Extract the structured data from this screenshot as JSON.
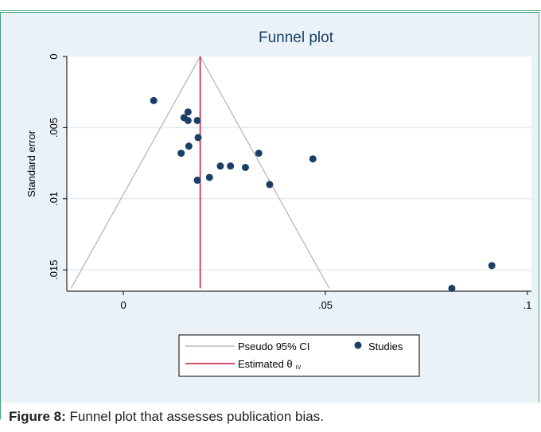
{
  "caption": {
    "label": "Figure 8:",
    "text": "Funnel plot that assesses publication bias."
  },
  "colors": {
    "frame_border": "#3aa37c",
    "chart_bg": "#eaf2f8",
    "plot_bg": "#ffffff",
    "points": "#1a3f66",
    "estimate_line": "#c0143c",
    "ci_lines": "#b8b8b8",
    "grid": "#e2ebf2"
  },
  "chart_data": {
    "type": "scatter",
    "title": "Funnel plot",
    "xlabel": "",
    "ylabel": "Standard error",
    "xlim": [
      -0.014,
      0.101
    ],
    "ylim": [
      0,
      0.0165
    ],
    "y_reversed": true,
    "x_ticks": [
      0,
      0.05,
      0.1
    ],
    "x_tick_labels": [
      "0",
      ".05",
      ".1"
    ],
    "y_ticks": [
      0,
      0.005,
      0.01,
      0.015
    ],
    "y_tick_labels": [
      "0",
      ".005",
      ".01",
      ".015"
    ],
    "grid": true,
    "legend_position": "bottom",
    "pooled_estimate": 0.019,
    "ci_bottom_se": 0.0163,
    "series": [
      {
        "name": "Studies",
        "points": [
          {
            "x": 0.0075,
            "y": 0.0031
          },
          {
            "x": 0.016,
            "y": 0.0039
          },
          {
            "x": 0.015,
            "y": 0.0043
          },
          {
            "x": 0.016,
            "y": 0.0045
          },
          {
            "x": 0.0183,
            "y": 0.0045
          },
          {
            "x": 0.0185,
            "y": 0.0057
          },
          {
            "x": 0.0162,
            "y": 0.0063
          },
          {
            "x": 0.0143,
            "y": 0.0068
          },
          {
            "x": 0.0335,
            "y": 0.0068
          },
          {
            "x": 0.0469,
            "y": 0.0072
          },
          {
            "x": 0.024,
            "y": 0.0077
          },
          {
            "x": 0.0265,
            "y": 0.0077
          },
          {
            "x": 0.0302,
            "y": 0.0078
          },
          {
            "x": 0.0213,
            "y": 0.0085
          },
          {
            "x": 0.0183,
            "y": 0.0087
          },
          {
            "x": 0.0362,
            "y": 0.009
          },
          {
            "x": 0.0912,
            "y": 0.0147
          },
          {
            "x": 0.0813,
            "y": 0.0163
          }
        ]
      }
    ],
    "legend": {
      "ci_label": "Pseudo 95% CI",
      "studies_label": "Studies",
      "estimate_label": "Estimated θ",
      "estimate_subscript": "IV"
    }
  }
}
